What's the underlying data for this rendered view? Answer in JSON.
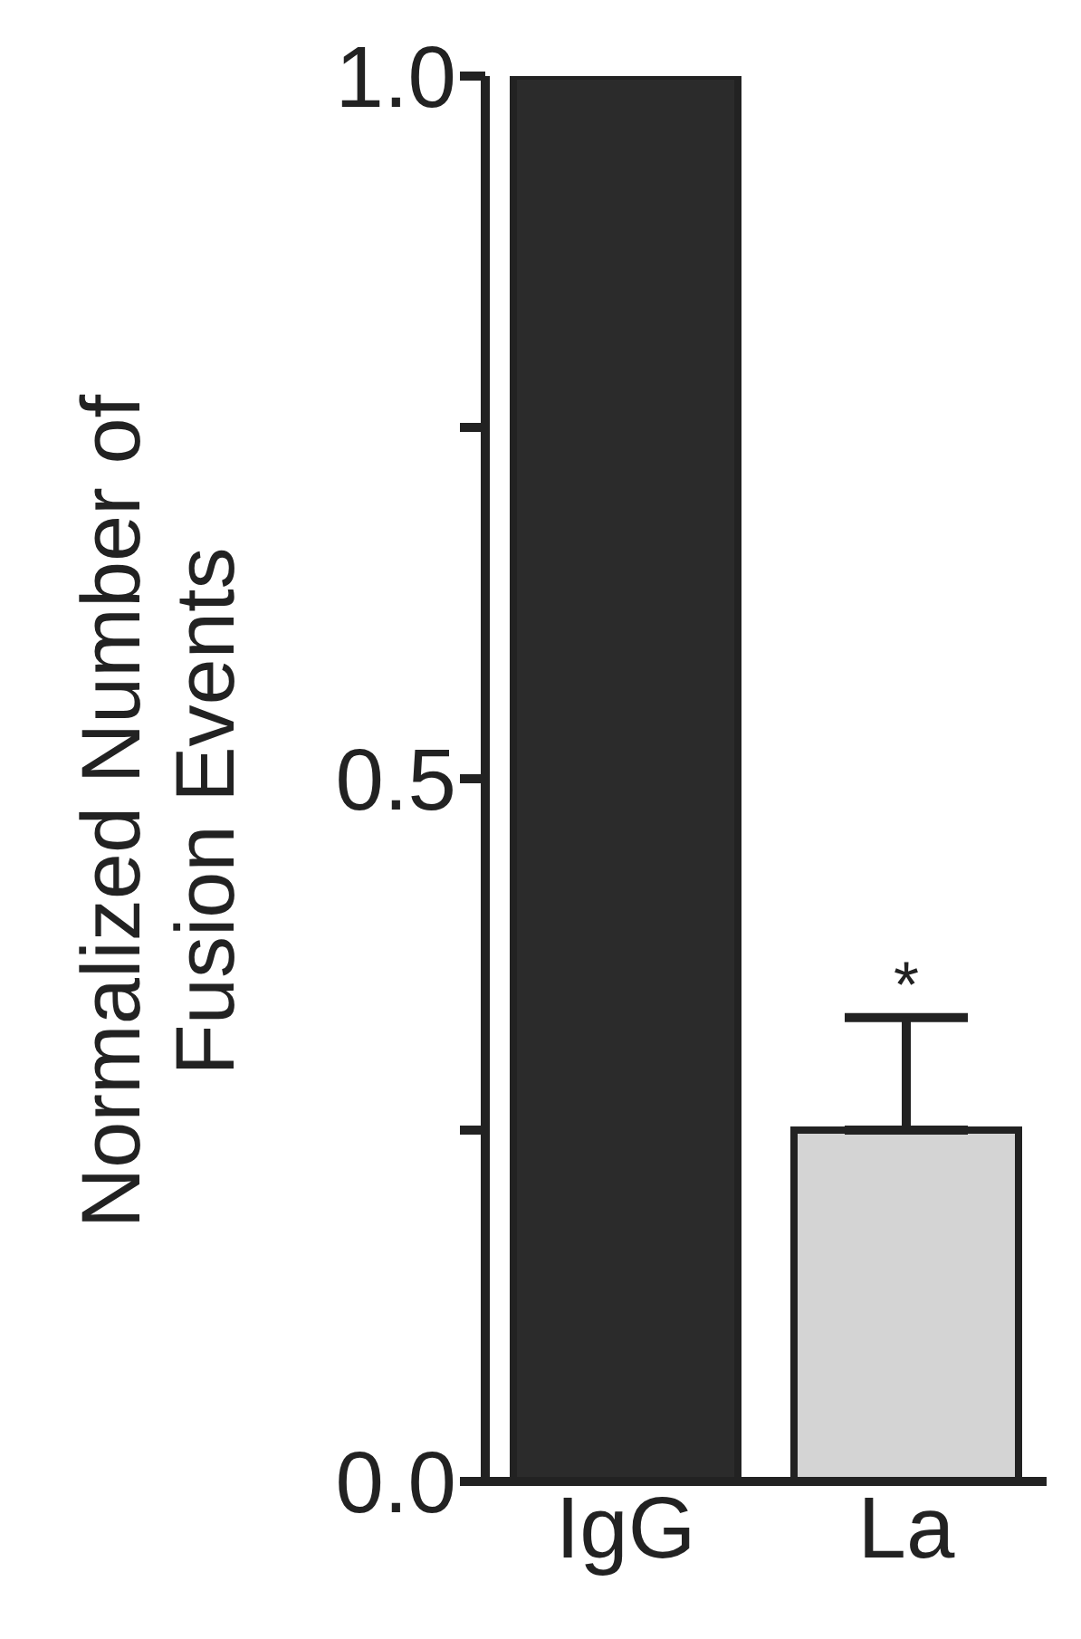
{
  "chart_data": {
    "type": "bar",
    "ylabel": "Normalized Number of\nFusion Events",
    "categories": [
      "IgG",
      "La"
    ],
    "values": [
      1.0,
      0.25
    ],
    "colors": [
      "#2b2b2b",
      "#d4d4d4"
    ],
    "errors": [
      null,
      [
        0.25,
        0.33
      ]
    ],
    "ylim": [
      0,
      1.0
    ],
    "yticks": [
      {
        "value": 0,
        "label": "0.0"
      },
      {
        "value": 0.25,
        "label": null
      },
      {
        "value": 0.5,
        "label": "0.5"
      },
      {
        "value": 0.75,
        "label": null
      },
      {
        "value": 1.0,
        "label": "1.0"
      }
    ],
    "annotations": [
      {
        "text": "*",
        "x": "La",
        "y": 0.33
      }
    ],
    "grid": false,
    "legend": false
  }
}
